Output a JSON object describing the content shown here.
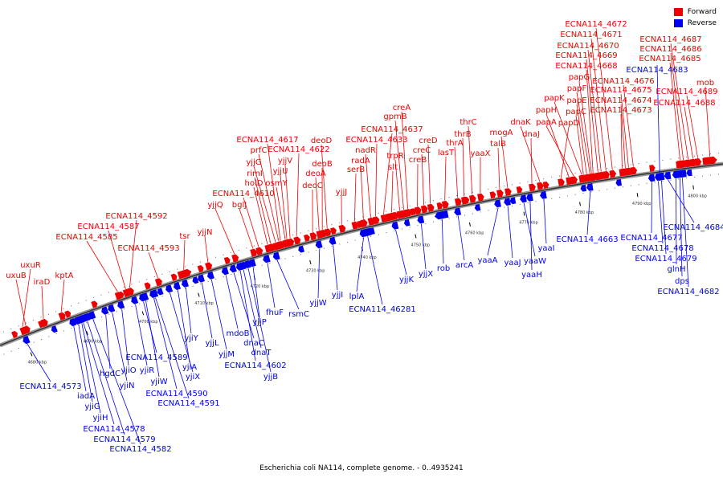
{
  "legend": {
    "forward_label": "Forward",
    "reverse_label": "Reverse",
    "forward_color": "#ee0000",
    "reverse_color": "#0000ee"
  },
  "caption": "Escherichia coli NA114, complete genome. - 0..4935241",
  "colors": {
    "backbone": "#777777",
    "forward": "#ee0000",
    "reverse": "#0000ee"
  },
  "axis": {
    "ticks": [
      "4680 kbp",
      "4690 kbp",
      "4700 kbp",
      "4710 kbp",
      "4720 kbp",
      "4730 kbp",
      "4740 kbp",
      "4750 kbp",
      "4760 kbp",
      "4770 kbp",
      "4780 kbp",
      "4790 kbp",
      "4800 kbp"
    ]
  },
  "forward_genes": [
    "uxuR",
    "uxuB",
    "iraD",
    "kptA",
    "ECNA114_4585",
    "ECNA114_4587",
    "ECNA114_4592",
    "ECNA114_4593",
    "tsr",
    "yjjN",
    "yjjQ",
    "bglJ",
    "ECNA114_4610",
    "holD",
    "rimI",
    "yjjG",
    "prfC",
    "ECNA114_4617",
    "osmY",
    "yjjU",
    "yjjV",
    "ECNA114_4622",
    "deoC",
    "deoA",
    "deoB",
    "deoD",
    "yjjJ",
    "serB",
    "radA",
    "nadR",
    "ECNA114_4633",
    "ECNA114_4637",
    "slt",
    "trpR",
    "gpmB",
    "creA",
    "creB",
    "creC",
    "creD",
    "lasT",
    "thrA",
    "thrB",
    "thrC",
    "yaaX",
    "talB",
    "mogA",
    "dnaJ",
    "dnaK",
    "papD",
    "papH",
    "papA",
    "papK",
    "papC",
    "papE",
    "papF",
    "papG",
    "ECNA114_4668",
    "ECNA114_4669",
    "ECNA114_4670",
    "ECNA114_4671",
    "ECNA114_4672",
    "ECNA114_4673",
    "ECNA114_4674",
    "ECNA114_4675",
    "ECNA114_4676",
    "ECNA114_4685",
    "ECNA114_4686",
    "ECNA114_4687",
    "ECNA114_4688",
    "ECNA114_4689",
    "mob"
  ],
  "reverse_genes": [
    "ECNA114_4573",
    "iadA",
    "yjiG",
    "yjiH",
    "ECNA114_4578",
    "ECNA114_4579",
    "ECNA114_4582",
    "hgdC",
    "yjiN",
    "yjiO",
    "yjiR",
    "ECNA114_4589",
    "yjiW",
    "ECNA114_4590",
    "ECNA114_4591",
    "yjiX",
    "yjiA",
    "yjiY",
    "yjjL",
    "yjjM",
    "mdoB",
    "dnaC",
    "ECNA114_4602",
    "dnaT",
    "yjjB",
    "yjjP",
    "fhuF",
    "rsmC",
    "yjjW",
    "yjjI",
    "lplA",
    "ECNA114_46281",
    "yjjK",
    "yjjX",
    "rob",
    "arcA",
    "yaaA",
    "yaaJ",
    "yaaW",
    "yaaH",
    "yaaI",
    "ECNA114_4663",
    "ECNA114_4677",
    "ECNA114_4678",
    "ECNA114_4679",
    "ECNA114_4684",
    "glnH",
    "dps",
    "ECNA114_4682",
    "ECNA114_4683"
  ]
}
